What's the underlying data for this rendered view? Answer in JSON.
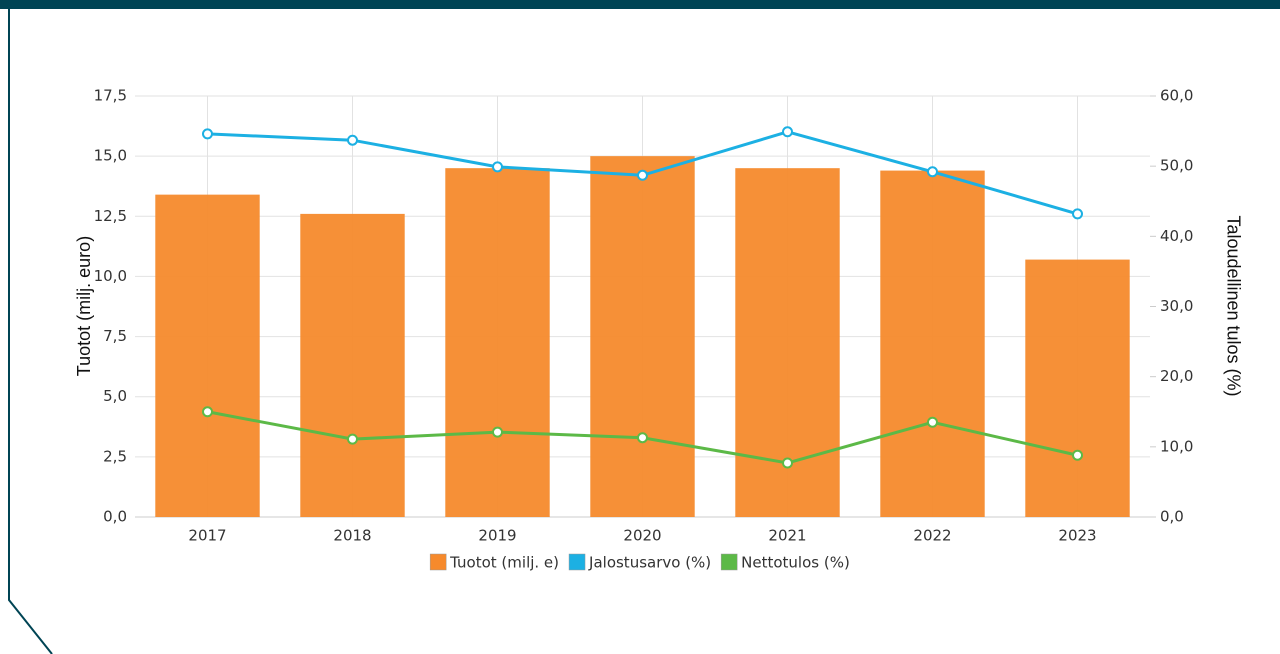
{
  "chart_data": {
    "type": "bar-line",
    "categories": [
      "2017",
      "2018",
      "2019",
      "2020",
      "2021",
      "2022",
      "2023"
    ],
    "series": [
      {
        "name": "Tuotot (milj. e)",
        "color": "#f68a2c",
        "type": "bar",
        "values": [
          13.4,
          12.6,
          14.5,
          15.0,
          14.5,
          14.4,
          10.7
        ]
      },
      {
        "name": "Jalostusarvo (%)",
        "color": "#1cb0e3",
        "type": "line",
        "axis": "y2",
        "values": [
          54.6,
          53.7,
          49.9,
          48.7,
          54.9,
          49.2,
          43.2
        ]
      },
      {
        "name": "Nettotulos (%)",
        "color": "#5cb947",
        "type": "line",
        "axis": "y2",
        "values": [
          15.0,
          11.1,
          12.1,
          11.3,
          7.7,
          13.5,
          8.8
        ]
      }
    ],
    "ylabel": "Tuotot (milj. euro)",
    "y2label": "Taloudellinen tulos (%)",
    "ylim": [
      0,
      17.5
    ],
    "yticks": [
      {
        "value": 0,
        "label": "0,0"
      },
      {
        "value": 2.5,
        "label": "2,5"
      },
      {
        "value": 5,
        "label": "5,0"
      },
      {
        "value": 7.5,
        "label": "7,5"
      },
      {
        "value": 10,
        "label": "10,0"
      },
      {
        "value": 12.5,
        "label": "12,5"
      },
      {
        "value": 15,
        "label": "15,0"
      },
      {
        "value": 17.5,
        "label": "17,5"
      }
    ],
    "y2lim": [
      0,
      60
    ],
    "y2ticks": [
      {
        "value": 0,
        "label": "0,0"
      },
      {
        "value": 10,
        "label": "10,0"
      },
      {
        "value": 20,
        "label": "20,0"
      },
      {
        "value": 30,
        "label": "30,0"
      },
      {
        "value": 40,
        "label": "40,0"
      },
      {
        "value": 50,
        "label": "50,0"
      },
      {
        "value": 60,
        "label": "60,0"
      }
    ],
    "grid": true,
    "legend": "bottom"
  }
}
